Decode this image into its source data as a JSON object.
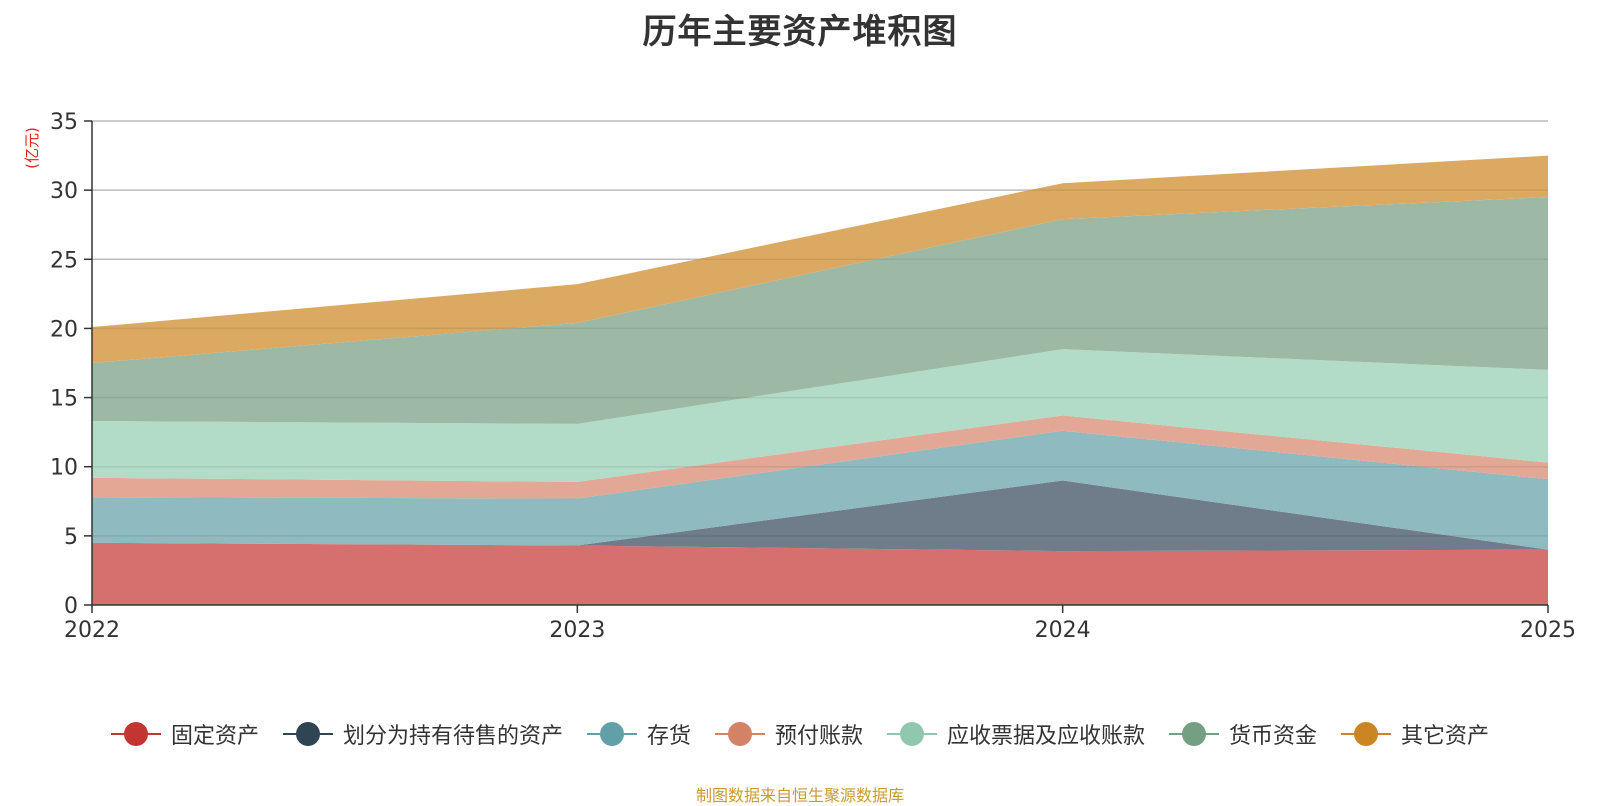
{
  "chart_data": {
    "type": "area",
    "stacked": true,
    "title": "历年主要资产堆积图",
    "unit_label": "(亿元)",
    "xlabel": "",
    "ylabel": "(亿元)",
    "categories": [
      "2022",
      "2023",
      "2024",
      "2025"
    ],
    "ylim": [
      0,
      35
    ],
    "yticks": [
      0,
      5,
      10,
      15,
      20,
      25,
      30,
      35
    ],
    "grid": true,
    "legend_position": "bottom",
    "series": [
      {
        "name": "固定资产",
        "color": "#c23531",
        "fill": "#d5706e",
        "values": [
          4.5,
          4.3,
          3.9,
          4.0
        ]
      },
      {
        "name": "划分为持有待售的资产",
        "color": "#2f4554",
        "fill": "#6e7d89",
        "values": [
          0.0,
          0.0,
          5.1,
          0.0
        ]
      },
      {
        "name": "存货",
        "color": "#61a0a8",
        "fill": "#8fbac0",
        "values": [
          3.3,
          3.4,
          3.6,
          5.1
        ]
      },
      {
        "name": "预付账款",
        "color": "#d48265",
        "fill": "#e2a795",
        "values": [
          1.4,
          1.2,
          1.1,
          1.2
        ]
      },
      {
        "name": "应收票据及应收账款",
        "color": "#91c7ae",
        "fill": "#b2dbc8",
        "values": [
          4.1,
          4.2,
          4.8,
          6.7
        ]
      },
      {
        "name": "货币资金",
        "color": "#749f83",
        "fill": "#9db9a5",
        "values": [
          4.2,
          7.3,
          9.4,
          12.5
        ]
      },
      {
        "name": "其它资产",
        "color": "#ca8622",
        "fill": "#dba962",
        "values": [
          2.6,
          2.8,
          2.6,
          3.0
        ]
      }
    ]
  },
  "source_note": "制图数据来自恒生聚源数据库",
  "colors": {
    "title": "#333333",
    "unit_label": "#e02020",
    "source_note": "#c99a2e",
    "gridline": "#cccccc",
    "axis": "#333333"
  }
}
